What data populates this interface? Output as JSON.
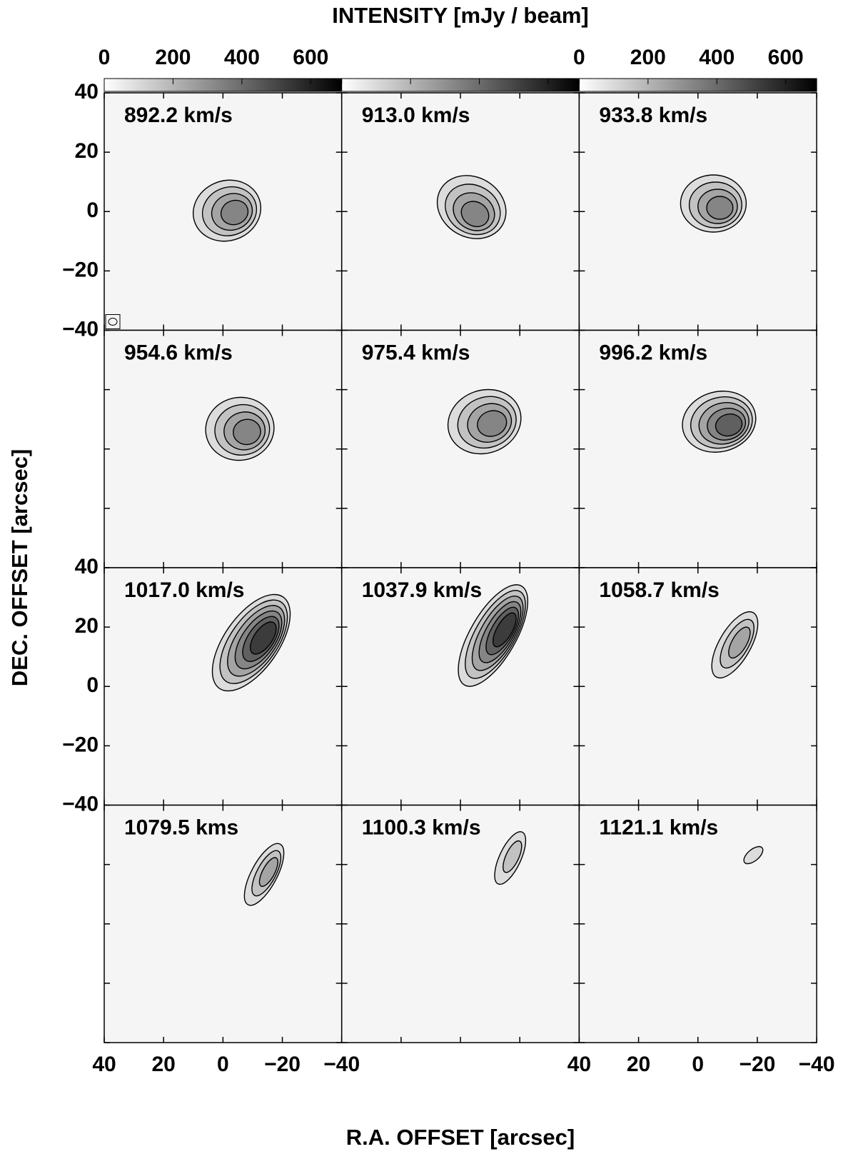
{
  "chart_data": {
    "type": "channel-map",
    "title": "INTENSITY  [mJy / beam]",
    "xlabel": "R.A. OFFSET  [arcsec]",
    "ylabel": "DEC. OFFSET  [arcsec]",
    "panels": [
      "892.2 km/s",
      "913.0 km/s",
      "933.8 km/s",
      "954.6 km/s",
      "975.4 km/s",
      "996.2 km/s",
      "1017.0 km/s",
      "1037.9 km/s",
      "1058.7 km/s",
      "1079.5 kms",
      "1100.3 km/s",
      "1121.1 km/s"
    ],
    "xlim": [
      40,
      -40
    ],
    "ylim": [
      -40,
      40
    ],
    "xticks": [
      40,
      20,
      0,
      {
        "value": -20,
        "label": "−20"
      },
      {
        "value": -40,
        "label": "−40"
      }
    ],
    "yticks": [
      40,
      20,
      0,
      {
        "value": -20,
        "label": "−20"
      },
      {
        "value": -40,
        "label": "−40"
      }
    ],
    "colorbar": {
      "lim": [
        0,
        690
      ],
      "ticks": [
        0,
        200,
        400,
        600
      ],
      "colors": [
        "#ffffff",
        "#000000"
      ]
    },
    "contour_color": "#000000"
  }
}
